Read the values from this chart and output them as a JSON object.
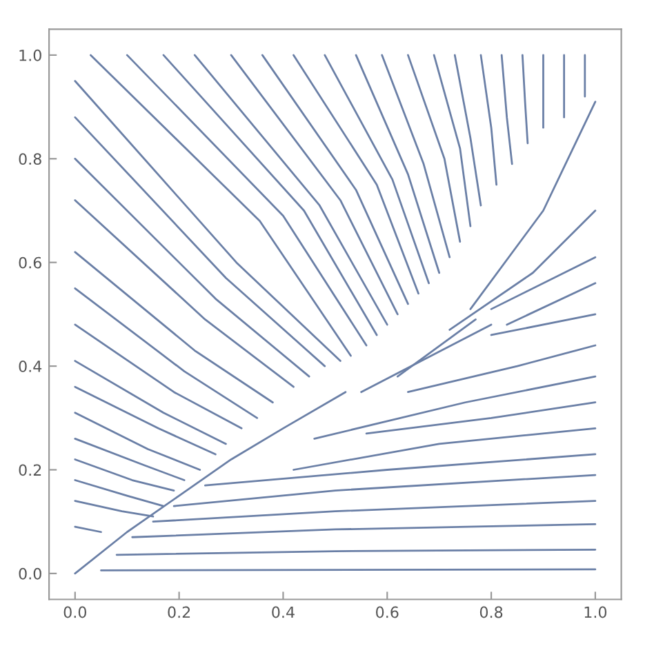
{
  "chart_data": {
    "type": "line",
    "xlim": [
      -0.05,
      1.05
    ],
    "ylim": [
      -0.05,
      1.05
    ],
    "xticks": [
      {
        "value": 0,
        "label": "0.0"
      },
      {
        "value": 0.2,
        "label": "0.2"
      },
      {
        "value": 0.4,
        "label": "0.4"
      },
      {
        "value": 0.6,
        "label": "0.6"
      },
      {
        "value": 0.8,
        "label": "0.8"
      },
      {
        "value": 1,
        "label": "1.0"
      }
    ],
    "yticks": [
      {
        "value": 0,
        "label": "0.0"
      },
      {
        "value": 0.2,
        "label": "0.2"
      },
      {
        "value": 0.4,
        "label": "0.4"
      },
      {
        "value": 0.6,
        "label": "0.6"
      },
      {
        "value": 0.8,
        "label": "0.8"
      },
      {
        "value": 1,
        "label": "1.0"
      }
    ],
    "grid": false,
    "marker": "none",
    "line_style": "solid",
    "series": [
      {
        "color": "#6a7fa6",
        "x": [
          0,
          0.1,
          0.2,
          0.3,
          0.4,
          0.52
        ],
        "values": [
          0,
          0.08,
          0.15,
          0.22,
          0.28,
          0.35
        ]
      },
      {
        "color": "#6a7fa6",
        "x": [
          0,
          0.05
        ],
        "values": [
          0.09,
          0.08
        ]
      },
      {
        "color": "#6a7fa6",
        "x": [
          0,
          0.09,
          0.15
        ],
        "values": [
          0.14,
          0.12,
          0.11
        ]
      },
      {
        "color": "#6a7fa6",
        "x": [
          0,
          0.1,
          0.17
        ],
        "values": [
          0.18,
          0.15,
          0.13
        ]
      },
      {
        "color": "#6a7fa6",
        "x": [
          0,
          0.11,
          0.19
        ],
        "values": [
          0.22,
          0.18,
          0.16
        ]
      },
      {
        "color": "#6a7fa6",
        "x": [
          0,
          0.13,
          0.21
        ],
        "values": [
          0.26,
          0.21,
          0.18
        ]
      },
      {
        "color": "#6a7fa6",
        "x": [
          0,
          0.14,
          0.24
        ],
        "values": [
          0.31,
          0.24,
          0.2
        ]
      },
      {
        "color": "#6a7fa6",
        "x": [
          0,
          0.16,
          0.27
        ],
        "values": [
          0.36,
          0.28,
          0.23
        ]
      },
      {
        "color": "#6a7fa6",
        "x": [
          0,
          0.17,
          0.29
        ],
        "values": [
          0.41,
          0.31,
          0.25
        ]
      },
      {
        "color": "#6a7fa6",
        "x": [
          0,
          0.19,
          0.32
        ],
        "values": [
          0.48,
          0.35,
          0.28
        ]
      },
      {
        "color": "#6a7fa6",
        "x": [
          0,
          0.21,
          0.35
        ],
        "values": [
          0.55,
          0.39,
          0.3
        ]
      },
      {
        "color": "#6a7fa6",
        "x": [
          0,
          0.23,
          0.38
        ],
        "values": [
          0.62,
          0.43,
          0.33
        ]
      },
      {
        "color": "#6a7fa6",
        "x": [
          0,
          0.25,
          0.42
        ],
        "values": [
          0.72,
          0.49,
          0.36
        ]
      },
      {
        "color": "#6a7fa6",
        "x": [
          0,
          0.27,
          0.45
        ],
        "values": [
          0.8,
          0.53,
          0.38
        ]
      },
      {
        "color": "#6a7fa6",
        "x": [
          0,
          0.29,
          0.48
        ],
        "values": [
          0.88,
          0.57,
          0.4
        ]
      },
      {
        "color": "#6a7fa6",
        "x": [
          0,
          0.31,
          0.51
        ],
        "values": [
          0.95,
          0.6,
          0.41
        ]
      },
      {
        "color": "#6a7fa6",
        "x": [
          0.03,
          0.355,
          0.53
        ],
        "values": [
          1,
          0.68,
          0.42
        ]
      },
      {
        "color": "#6a7fa6",
        "x": [
          0.1,
          0.4,
          0.56
        ],
        "values": [
          1,
          0.69,
          0.44
        ]
      },
      {
        "color": "#6a7fa6",
        "x": [
          0.17,
          0.44,
          0.58
        ],
        "values": [
          1,
          0.7,
          0.46
        ]
      },
      {
        "color": "#6a7fa6",
        "x": [
          0.23,
          0.47,
          0.6
        ],
        "values": [
          1,
          0.71,
          0.48
        ]
      },
      {
        "color": "#6a7fa6",
        "x": [
          0.3,
          0.51,
          0.62
        ],
        "values": [
          1,
          0.72,
          0.5
        ]
      },
      {
        "color": "#6a7fa6",
        "x": [
          0.36,
          0.54,
          0.64
        ],
        "values": [
          1,
          0.74,
          0.52
        ]
      },
      {
        "color": "#6a7fa6",
        "x": [
          0.42,
          0.58,
          0.66
        ],
        "values": [
          1,
          0.75,
          0.54
        ]
      },
      {
        "color": "#6a7fa6",
        "x": [
          0.48,
          0.61,
          0.68
        ],
        "values": [
          1,
          0.76,
          0.56
        ]
      },
      {
        "color": "#6a7fa6",
        "x": [
          0.54,
          0.64,
          0.7
        ],
        "values": [
          1,
          0.77,
          0.58
        ]
      },
      {
        "color": "#6a7fa6",
        "x": [
          0.59,
          0.67,
          0.72
        ],
        "values": [
          1,
          0.79,
          0.61
        ]
      },
      {
        "color": "#6a7fa6",
        "x": [
          0.64,
          0.71,
          0.74
        ],
        "values": [
          1,
          0.8,
          0.64
        ]
      },
      {
        "color": "#6a7fa6",
        "x": [
          0.69,
          0.74,
          0.76
        ],
        "values": [
          1,
          0.82,
          0.67
        ]
      },
      {
        "color": "#6a7fa6",
        "x": [
          0.73,
          0.76,
          0.78
        ],
        "values": [
          1,
          0.84,
          0.71
        ]
      },
      {
        "color": "#6a7fa6",
        "x": [
          0.78,
          0.8,
          0.81
        ],
        "values": [
          1,
          0.86,
          0.75
        ]
      },
      {
        "color": "#6a7fa6",
        "x": [
          0.82,
          0.83,
          0.84
        ],
        "values": [
          1,
          0.88,
          0.79
        ]
      },
      {
        "color": "#6a7fa6",
        "x": [
          0.86,
          0.865,
          0.87
        ],
        "values": [
          1,
          0.91,
          0.83
        ]
      },
      {
        "color": "#6a7fa6",
        "x": [
          0.9,
          0.9,
          0.9
        ],
        "values": [
          1,
          0.93,
          0.86
        ]
      },
      {
        "color": "#6a7fa6",
        "x": [
          0.94,
          0.94
        ],
        "values": [
          1,
          0.88
        ]
      },
      {
        "color": "#6a7fa6",
        "x": [
          0.98,
          0.98
        ],
        "values": [
          1,
          0.92
        ]
      },
      {
        "color": "#6a7fa6",
        "x": [
          0.76,
          0.9,
          1
        ],
        "values": [
          0.51,
          0.7,
          0.91
        ]
      },
      {
        "color": "#6a7fa6",
        "x": [
          0.72,
          0.88,
          1
        ],
        "values": [
          0.47,
          0.58,
          0.7
        ]
      },
      {
        "color": "#6a7fa6",
        "x": [
          0.8,
          1
        ],
        "values": [
          0.51,
          0.61
        ]
      },
      {
        "color": "#6a7fa6",
        "x": [
          0.83,
          1
        ],
        "values": [
          0.48,
          0.56
        ]
      },
      {
        "color": "#6a7fa6",
        "x": [
          0.8,
          1
        ],
        "values": [
          0.46,
          0.5
        ]
      },
      {
        "color": "#6a7fa6",
        "x": [
          0.55,
          0.8
        ],
        "values": [
          0.35,
          0.48
        ]
      },
      {
        "color": "#6a7fa6",
        "x": [
          0.62,
          0.77
        ],
        "values": [
          0.38,
          0.49
        ]
      },
      {
        "color": "#6a7fa6",
        "x": [
          0.64,
          0.85,
          1
        ],
        "values": [
          0.35,
          0.4,
          0.44
        ]
      },
      {
        "color": "#6a7fa6",
        "x": [
          0.46,
          0.75,
          1
        ],
        "values": [
          0.26,
          0.33,
          0.38
        ]
      },
      {
        "color": "#6a7fa6",
        "x": [
          0.56,
          0.8,
          1
        ],
        "values": [
          0.27,
          0.3,
          0.33
        ]
      },
      {
        "color": "#6a7fa6",
        "x": [
          0.42,
          0.7,
          1
        ],
        "values": [
          0.2,
          0.25,
          0.28
        ]
      },
      {
        "color": "#6a7fa6",
        "x": [
          0.25,
          0.6,
          1
        ],
        "values": [
          0.17,
          0.2,
          0.23
        ]
      },
      {
        "color": "#6a7fa6",
        "x": [
          0.19,
          0.5,
          1
        ],
        "values": [
          0.13,
          0.16,
          0.19
        ]
      },
      {
        "color": "#6a7fa6",
        "x": [
          0.15,
          0.5,
          1
        ],
        "values": [
          0.1,
          0.12,
          0.14
        ]
      },
      {
        "color": "#6a7fa6",
        "x": [
          0.11,
          0.5,
          1
        ],
        "values": [
          0.07,
          0.085,
          0.095
        ]
      },
      {
        "color": "#6a7fa6",
        "x": [
          0.08,
          0.5,
          1
        ],
        "values": [
          0.036,
          0.043,
          0.046
        ]
      },
      {
        "color": "#6a7fa6",
        "x": [
          0.05,
          1
        ],
        "values": [
          0.006,
          0.008
        ]
      }
    ]
  }
}
